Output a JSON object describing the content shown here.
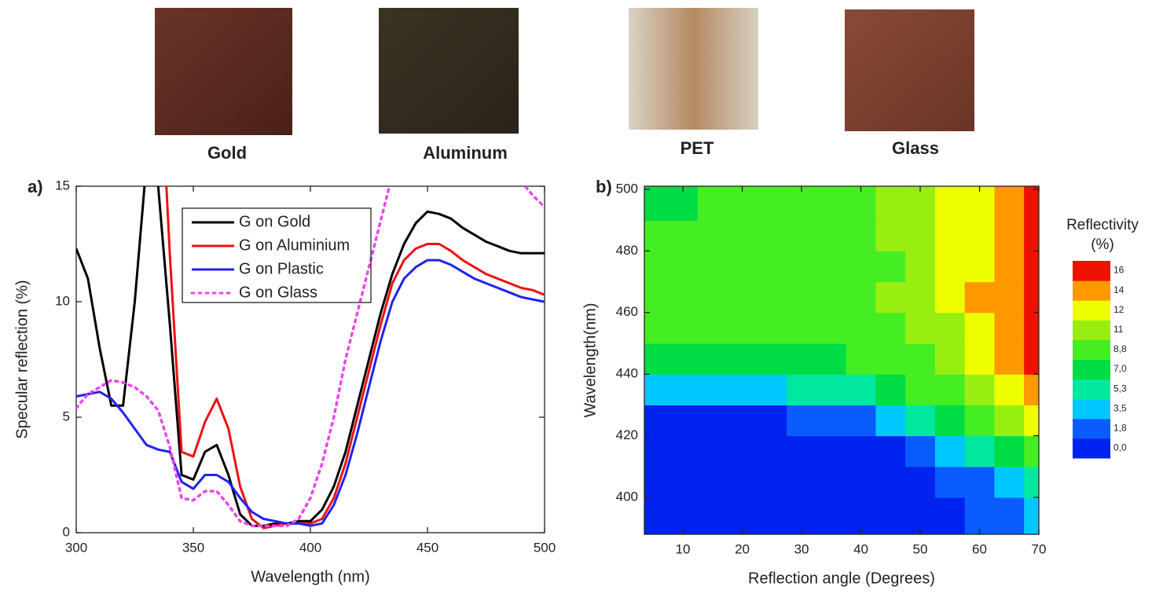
{
  "photos": {
    "labels": [
      "Gold",
      "Aluminum",
      "PET",
      "Glass"
    ]
  },
  "chart_data": [
    {
      "type": "line",
      "panel": "a)",
      "xlabel": "Wavelength (nm)",
      "ylabel": "Specular reflection (%)",
      "xlim": [
        300,
        500
      ],
      "ylim": [
        0,
        15
      ],
      "xticks": [
        300,
        350,
        400,
        450,
        500
      ],
      "yticks": [
        0,
        5,
        10,
        15
      ],
      "x": [
        300,
        305,
        310,
        315,
        320,
        325,
        330,
        335,
        340,
        345,
        350,
        355,
        360,
        365,
        370,
        375,
        380,
        385,
        390,
        395,
        400,
        405,
        410,
        415,
        420,
        425,
        430,
        435,
        440,
        445,
        450,
        455,
        460,
        465,
        470,
        475,
        480,
        485,
        490,
        495,
        500
      ],
      "series": [
        {
          "name": "G on Gold",
          "color": "#000000",
          "line_style": "solid",
          "values": [
            12.3,
            11,
            8,
            5.5,
            5.5,
            10,
            16,
            15,
            9,
            2.5,
            2.3,
            3.5,
            3.8,
            2.5,
            0.8,
            0.3,
            0.3,
            0.4,
            0.4,
            0.5,
            0.5,
            1,
            2,
            3.5,
            5.5,
            7.5,
            9.5,
            11.2,
            12.5,
            13.4,
            13.9,
            13.8,
            13.6,
            13.2,
            12.9,
            12.6,
            12.4,
            12.2,
            12.1,
            12.1,
            12.1
          ]
        },
        {
          "name": "G on Aluminium",
          "color": "#ee1111",
          "line_style": "solid",
          "values": [
            null,
            null,
            null,
            null,
            null,
            null,
            null,
            22,
            12,
            3.5,
            3.3,
            4.8,
            5.8,
            4.5,
            2,
            0.6,
            0.2,
            0.3,
            0.4,
            0.4,
            0.4,
            0.6,
            1.5,
            3,
            5,
            7,
            9,
            10.8,
            11.8,
            12.3,
            12.5,
            12.5,
            12.2,
            11.8,
            11.5,
            11.2,
            11,
            10.8,
            10.6,
            10.5,
            10.3
          ]
        },
        {
          "name": "G on Plastic",
          "color": "#2222ee",
          "line_style": "solid",
          "values": [
            5.9,
            6,
            6.1,
            5.8,
            5.2,
            4.5,
            3.8,
            3.6,
            3.5,
            2.2,
            1.9,
            2.5,
            2.5,
            2.2,
            1.5,
            0.9,
            0.6,
            0.5,
            0.4,
            0.4,
            0.3,
            0.4,
            1.2,
            2.5,
            4.3,
            6.3,
            8.3,
            10,
            11,
            11.5,
            11.8,
            11.8,
            11.6,
            11.3,
            11,
            10.8,
            10.6,
            10.4,
            10.2,
            10.1,
            10
          ]
        },
        {
          "name": "G on Glass",
          "color": "#ee44ee",
          "line_style": "dotted",
          "values": [
            5.4,
            6,
            6.3,
            6.6,
            6.5,
            6.3,
            5.9,
            5.3,
            3.7,
            1.5,
            1.4,
            1.8,
            1.8,
            1.2,
            0.5,
            0.3,
            0.3,
            0.3,
            0.3,
            0.6,
            1.5,
            3,
            5,
            7.5,
            9.5,
            11.5,
            13.5,
            15.5,
            17,
            null,
            null,
            null,
            null,
            null,
            null,
            null,
            null,
            null,
            15.2,
            14.6,
            14.1
          ]
        }
      ]
    },
    {
      "type": "contour",
      "panel": "b)",
      "xlabel": "Reflection angle (Degrees)",
      "ylabel": "Wavelength(nm)",
      "colorbar_title": [
        "Reflectivity",
        "(%)"
      ],
      "xlim": [
        3.5,
        70
      ],
      "ylim": [
        388,
        501
      ],
      "xticks": [
        10,
        20,
        30,
        40,
        50,
        60,
        70
      ],
      "yticks": [
        400,
        420,
        440,
        460,
        480,
        500
      ],
      "x": [
        5,
        10,
        15,
        20,
        25,
        30,
        35,
        40,
        45,
        50,
        55,
        60,
        65,
        70
      ],
      "y": [
        395,
        405,
        415,
        425,
        435,
        445,
        455,
        465,
        475,
        485,
        495
      ],
      "z": [
        [
          0.2,
          0.2,
          0.2,
          0.2,
          0.2,
          0.2,
          0.2,
          0.3,
          0.5,
          0.8,
          1.2,
          1.8,
          2.5,
          4
        ],
        [
          0.3,
          0.3,
          0.3,
          0.3,
          0.3,
          0.3,
          0.3,
          0.5,
          0.8,
          1.2,
          2,
          3,
          4.5,
          6
        ],
        [
          0.5,
          0.5,
          0.5,
          0.5,
          0.5,
          0.5,
          0.7,
          1,
          1.5,
          2.5,
          4,
          5.5,
          7.5,
          10
        ],
        [
          1.5,
          1.5,
          1.5,
          1.5,
          1.5,
          2,
          2.5,
          3.5,
          4.5,
          6,
          7.5,
          9,
          11,
          13
        ],
        [
          4.5,
          4.5,
          4.5,
          4.5,
          5,
          5.5,
          6,
          7,
          8,
          9,
          10,
          12,
          13.5,
          15
        ],
        [
          7.5,
          7.5,
          7.5,
          7.5,
          8,
          8,
          8.5,
          9,
          9.5,
          10.5,
          11.5,
          13,
          14.5,
          16
        ],
        [
          9,
          9,
          9,
          9,
          9,
          9.5,
          9.5,
          10,
          10.5,
          11,
          12,
          13.5,
          15,
          16
        ],
        [
          10,
          10,
          10,
          10,
          10,
          10,
          10,
          10.5,
          11,
          12,
          13,
          14.5,
          15.5,
          16.5
        ],
        [
          10,
          10,
          10,
          10,
          10.5,
          10.5,
          10.5,
          10.5,
          10.5,
          11,
          12.5,
          14,
          15,
          16
        ],
        [
          9,
          9,
          9.5,
          10,
          10,
          10,
          10.5,
          10.5,
          11,
          12,
          13,
          14,
          15,
          16
        ],
        [
          8,
          8,
          9,
          9,
          9.5,
          10,
          10,
          10.5,
          11,
          12,
          13,
          14,
          15,
          16
        ]
      ],
      "levels": [
        {
          "value": 0,
          "label": "0,0"
        },
        {
          "value": 1.76,
          "label": "1,8"
        },
        {
          "value": 3.52,
          "label": "3,5"
        },
        {
          "value": 5.28,
          "label": "5,3"
        },
        {
          "value": 7.04,
          "label": "7,0"
        },
        {
          "value": 8.8,
          "label": "8,8"
        },
        {
          "value": 10.56,
          "label": "11"
        },
        {
          "value": 12.32,
          "label": "12"
        },
        {
          "value": 14.08,
          "label": "14"
        },
        {
          "value": 15.84,
          "label": "16"
        }
      ],
      "colors": [
        "#0022ee",
        "#0a5cff",
        "#00c8ff",
        "#00e8a0",
        "#00dd44",
        "#44ee22",
        "#99ee11",
        "#eeff00",
        "#ff9900",
        "#ee1100"
      ]
    }
  ]
}
